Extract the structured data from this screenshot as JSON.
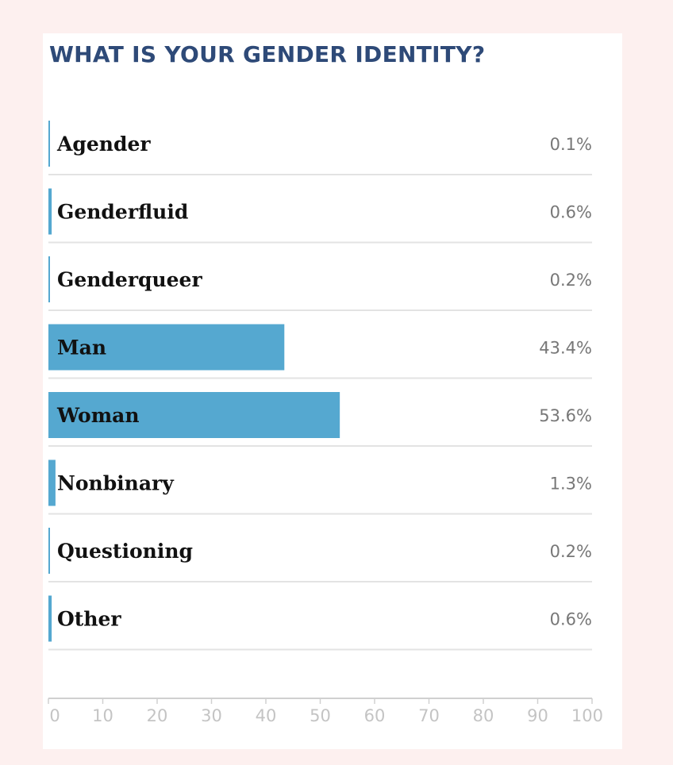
{
  "chart_data": {
    "type": "bar",
    "orientation": "horizontal",
    "title": "WHAT IS YOUR GENDER IDENTITY?",
    "categories": [
      "Agender",
      "Genderfluid",
      "Genderqueer",
      "Man",
      "Woman",
      "Nonbinary",
      "Questioning",
      "Other"
    ],
    "values": [
      0.1,
      0.6,
      0.2,
      43.4,
      53.6,
      1.3,
      0.2,
      0.6
    ],
    "value_labels": [
      "0.1%",
      "0.6%",
      "0.2%",
      "43.4%",
      "53.6%",
      "1.3%",
      "0.2%",
      "0.6%"
    ],
    "xlim": [
      0,
      100
    ],
    "xticks": [
      0,
      10,
      20,
      30,
      40,
      50,
      60,
      70,
      80,
      90,
      100
    ],
    "xtick_labels": [
      "0",
      "10",
      "20",
      "30",
      "40",
      "50",
      "60",
      "70",
      "80",
      "90",
      "100"
    ],
    "grid": false,
    "colors": {
      "bar": "#55a8d0",
      "title": "#2e4a78",
      "background": "#fdf0ef",
      "card": "#ffffff"
    }
  }
}
